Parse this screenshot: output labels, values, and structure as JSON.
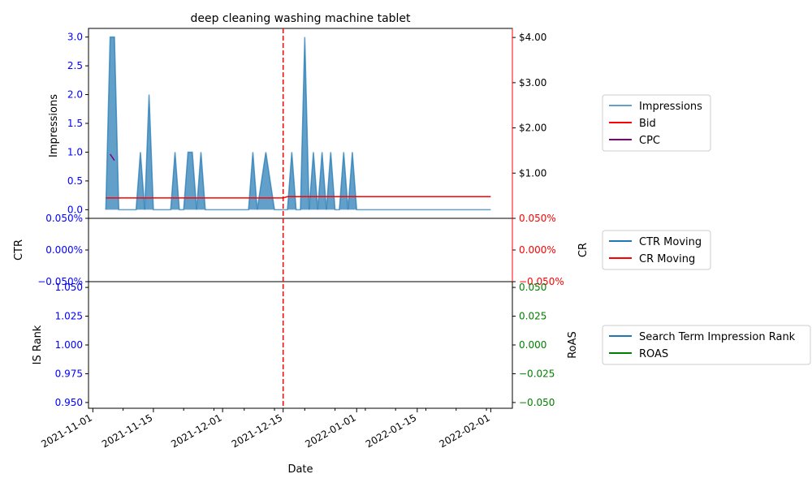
{
  "colors": {
    "impressions": "#1f77b4",
    "bid": "#ff0000",
    "cpc": "#800080",
    "ctr": "#1f77b4",
    "cr": "#ff0000",
    "rank": "#1f77b4",
    "roas": "#008000",
    "left_ticks": "#0000ff",
    "cr_ticks": "#ff0000",
    "roas_ticks": "#008000",
    "vline": "#ff0000"
  },
  "chart_data": [
    {
      "type": "area",
      "title": "deep cleaning washing machine tablet",
      "ylabel": "Impressions",
      "ylim": [
        -0.15,
        3.15
      ],
      "y_ticks": [
        0.0,
        0.5,
        1.0,
        1.5,
        2.0,
        2.5,
        3.0
      ],
      "y_tick_labels": [
        "0.0",
        "0.5",
        "1.0",
        "1.5",
        "2.0",
        "2.5",
        "3.0"
      ],
      "y2lim": [
        0.0,
        4.2
      ],
      "y2_ticks": [
        1,
        2,
        3,
        4
      ],
      "y2_tick_labels": [
        "$1.00",
        "$2.00",
        "$3.00",
        "$4.00"
      ],
      "legend": [
        "Impressions",
        "Bid",
        "CPC"
      ],
      "legend_position": "outside-right",
      "series": [
        {
          "name": "Impressions",
          "x": [
            "2021-11-04",
            "2021-11-05",
            "2021-11-06",
            "2021-11-07",
            "2021-11-11",
            "2021-11-12",
            "2021-11-13",
            "2021-11-14",
            "2021-11-15",
            "2021-11-19",
            "2021-11-20",
            "2021-11-21",
            "2021-11-22",
            "2021-11-23",
            "2021-11-24",
            "2021-11-25",
            "2021-11-26",
            "2021-11-27",
            "2021-11-28",
            "2021-12-07",
            "2021-12-08",
            "2021-12-09",
            "2021-12-11",
            "2021-12-13",
            "2021-12-14",
            "2021-12-15",
            "2021-12-16",
            "2021-12-17",
            "2021-12-18",
            "2021-12-19",
            "2021-12-20",
            "2021-12-21",
            "2021-12-22",
            "2021-12-23",
            "2021-12-24",
            "2021-12-25",
            "2021-12-26",
            "2021-12-27",
            "2021-12-28",
            "2021-12-29",
            "2021-12-30",
            "2021-12-31",
            "2022-01-01",
            "2022-02-01"
          ],
          "values": [
            0,
            3,
            3,
            0,
            0,
            1,
            0,
            2,
            0,
            0,
            1,
            0,
            0,
            1,
            1,
            0,
            1,
            0,
            0,
            0,
            1,
            0,
            1,
            0,
            0,
            0,
            0,
            1,
            0,
            0,
            3,
            0,
            1,
            0,
            1,
            0,
            1,
            0,
            0,
            1,
            0,
            1,
            0,
            0
          ]
        },
        {
          "name": "Bid",
          "x": [
            "2021-11-04",
            "2021-12-15",
            "2021-12-16",
            "2022-02-01"
          ],
          "values": [
            0.45,
            0.45,
            0.48,
            0.48
          ]
        },
        {
          "name": "CPC",
          "x": [
            "2021-11-05",
            "2021-11-06"
          ],
          "values": [
            1.42,
            1.28
          ]
        }
      ],
      "vline_x": "2021-12-15"
    },
    {
      "type": "line",
      "ylabel": "CTR",
      "y2label": "CR",
      "ylim": [
        -0.05,
        0.05
      ],
      "y_ticks": [
        -0.05,
        0.0,
        0.05
      ],
      "y_tick_labels": [
        "−0.050%",
        "0.000%",
        "0.050%"
      ],
      "y2_tick_labels": [
        "−0.050%",
        "0.000%",
        "0.050%"
      ],
      "legend": [
        "CTR Moving",
        "CR Moving"
      ],
      "legend_position": "outside-right",
      "series": [
        {
          "name": "CTR Moving",
          "x": [],
          "values": []
        },
        {
          "name": "CR Moving",
          "x": [],
          "values": []
        }
      ],
      "vline_x": "2021-12-15"
    },
    {
      "type": "line",
      "ylabel": "IS Rank",
      "y2label": "RoAS",
      "xlabel": "Date",
      "ylim": [
        0.945,
        1.055
      ],
      "y_ticks": [
        0.95,
        0.975,
        1.0,
        1.025,
        1.05
      ],
      "y_tick_labels": [
        "0.950",
        "0.975",
        "1.000",
        "1.025",
        "1.050"
      ],
      "y2lim": [
        -0.055,
        0.055
      ],
      "y2_ticks": [
        -0.05,
        -0.025,
        0.0,
        0.025,
        0.05
      ],
      "y2_tick_labels": [
        "−0.050",
        "−0.025",
        "0.000",
        "0.025",
        "0.050"
      ],
      "legend": [
        "Search Term Impression Rank",
        "ROAS"
      ],
      "legend_position": "outside-right",
      "series": [
        {
          "name": "Search Term Impression Rank",
          "x": [],
          "values": []
        },
        {
          "name": "ROAS",
          "x": [],
          "values": []
        }
      ],
      "vline_x": "2021-12-15"
    }
  ],
  "x_axis": {
    "xlim": [
      "2021-10-31",
      "2022-02-06"
    ],
    "major_ticks": [
      "2021-11-01",
      "2021-11-15",
      "2021-12-01",
      "2021-12-15",
      "2022-01-01",
      "2022-01-15",
      "2022-02-01"
    ],
    "major_tick_labels": [
      "2021-11-01",
      "2021-11-15",
      "2021-12-01",
      "2021-12-15",
      "2022-01-01",
      "2022-01-15",
      "2022-02-01"
    ],
    "minor_ticks": [
      "2021-11-08",
      "2021-11-22",
      "2021-11-29",
      "2021-12-06",
      "2021-12-13",
      "2021-12-20",
      "2021-12-27",
      "2022-01-03",
      "2022-01-10",
      "2022-01-17",
      "2022-01-24",
      "2022-01-31"
    ]
  }
}
